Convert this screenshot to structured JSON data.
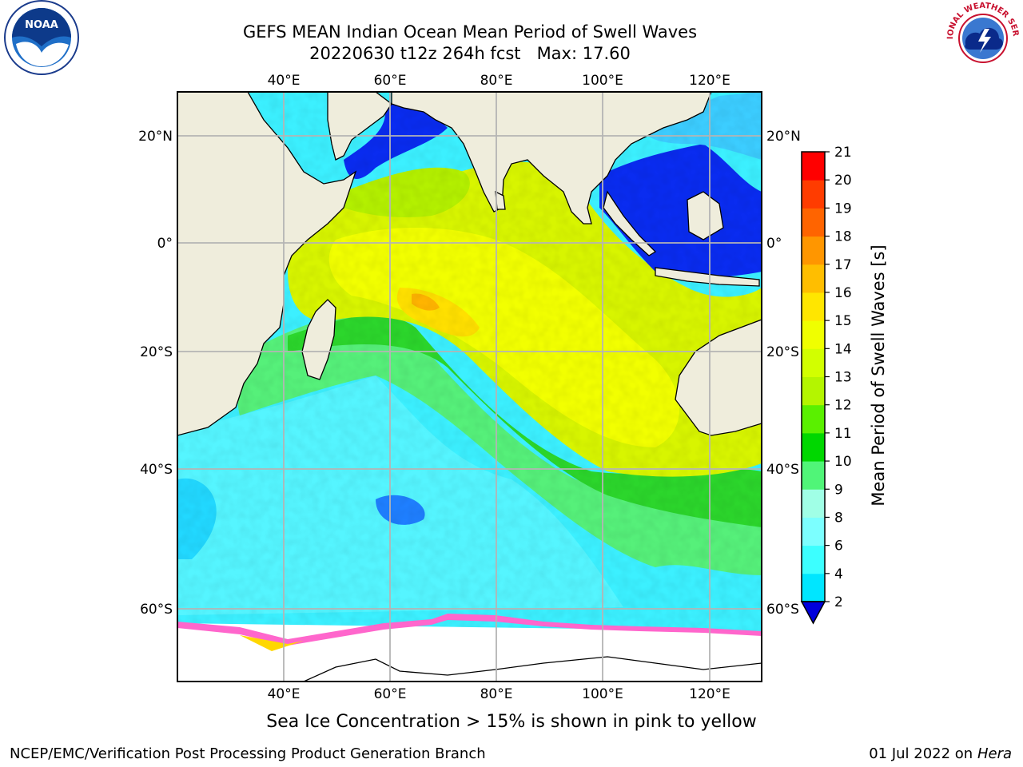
{
  "title": "GEFS MEAN Indian Ocean Mean Period of Swell Waves",
  "subtitle": "20220630 t12z 264h fcst   Max: 17.60",
  "logos": {
    "left": "NOAA",
    "right": "NATIONAL WEATHER SERVICE"
  },
  "map": {
    "region": "Indian Ocean",
    "lon_labels": [
      "40°E",
      "60°E",
      "80°E",
      "100°E",
      "120°E"
    ],
    "lat_labels": [
      "20°N",
      "0°",
      "20°S",
      "40°S",
      "60°S"
    ],
    "gridlines": true
  },
  "colorbar": {
    "label": "Mean Period of Swell Waves [s]",
    "ticks": [
      "2",
      "4",
      "6",
      "8",
      "9",
      "10",
      "11",
      "12",
      "13",
      "14",
      "15",
      "16",
      "17",
      "18",
      "19",
      "20",
      "21"
    ],
    "colors": [
      "#0064ff",
      "#00e6ff",
      "#3cffff",
      "#7cffff",
      "#a0ffe6",
      "#50f578",
      "#00d700",
      "#5af000",
      "#b4f500",
      "#d2ff00",
      "#f0ff00",
      "#ffe600",
      "#ffbe00",
      "#ff9600",
      "#ff6400",
      "#ff3c00",
      "#ff0000"
    ],
    "under_color": "#0000dc"
  },
  "caption": "Sea Ice Concentration > 15% is shown in pink to yellow",
  "footer": {
    "left": "NCEP/EMC/Verification Post Processing Product Generation Branch",
    "date": "01 Jul 2022 on ",
    "machine": "Hera"
  }
}
